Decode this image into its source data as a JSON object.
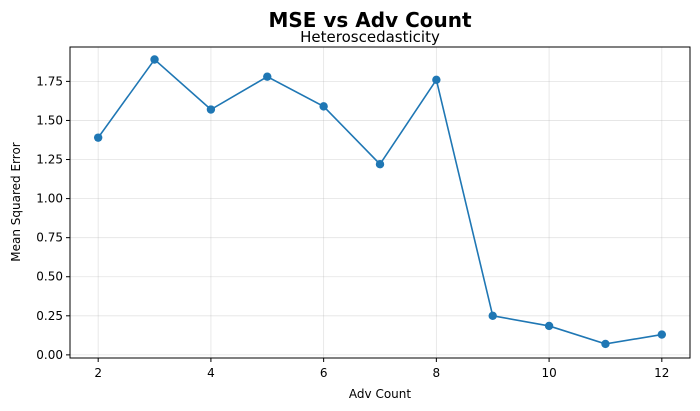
{
  "chart_data": {
    "type": "line",
    "title": "MSE vs Adv Count",
    "subtitle": "Heteroscedasticity",
    "xlabel": "Adv Count",
    "ylabel": "Mean Squared Error",
    "x": [
      2,
      3,
      4,
      5,
      6,
      7,
      8,
      9,
      10,
      11,
      12
    ],
    "series": [
      {
        "values": [
          1.39,
          1.89,
          1.57,
          1.78,
          1.59,
          1.22,
          1.76,
          0.25,
          0.185,
          0.07,
          0.13
        ],
        "color": "#1f77b4"
      }
    ],
    "xlim": [
      1.5,
      12.5
    ],
    "ylim": [
      -0.02,
      1.97
    ],
    "xticks": [
      2,
      4,
      6,
      8,
      10,
      12
    ],
    "xtick_labels": [
      "2",
      "4",
      "6",
      "8",
      "10",
      "12"
    ],
    "yticks": [
      0.0,
      0.25,
      0.5,
      0.75,
      1.0,
      1.25,
      1.5,
      1.75
    ],
    "ytick_labels": [
      "0.00",
      "0.25",
      "0.50",
      "0.75",
      "1.00",
      "1.25",
      "1.50",
      "1.75"
    ],
    "grid": true,
    "marker": "circle"
  }
}
